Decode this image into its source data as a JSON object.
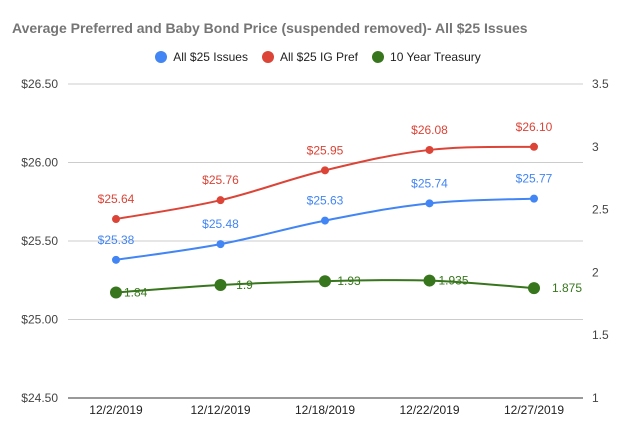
{
  "chart_data": {
    "type": "line",
    "title": "Average Preferred and Baby Bond Price (suspended removed)- All $25 Issues",
    "categories": [
      "12/2/2019",
      "12/12/2019",
      "12/18/2019",
      "12/22/2019",
      "12/27/2019"
    ],
    "left_axis": {
      "ticks": [
        "$26.50",
        "$26.00",
        "$25.50",
        "$25.00",
        "$24.50"
      ],
      "range": [
        24.5,
        26.5
      ]
    },
    "right_axis": {
      "ticks": [
        "3.5",
        "3",
        "2.5",
        "2",
        "1.5",
        "1"
      ],
      "range": [
        1,
        3.5
      ]
    },
    "grid": true,
    "legend_position": "top",
    "series": [
      {
        "name": "All $25 Issues",
        "axis": "left",
        "color": "#4285F4",
        "values": [
          25.38,
          25.48,
          25.63,
          25.74,
          25.77
        ],
        "labels": [
          "$25.38",
          "$25.48",
          "$25.63",
          "$25.74",
          "$25.77"
        ]
      },
      {
        "name": "All $25 IG Pref",
        "axis": "left",
        "color": "#DB4437",
        "values": [
          25.64,
          25.76,
          25.95,
          26.08,
          26.1
        ],
        "labels": [
          "$25.64",
          "$25.76",
          "$25.95",
          "$26.08",
          "$26.10"
        ]
      },
      {
        "name": "10 Year Treasury",
        "axis": "right",
        "color": "#38761D",
        "values": [
          1.84,
          1.9,
          1.93,
          1.935,
          1.875
        ],
        "labels": [
          "1.84",
          "1.9",
          "1.93",
          "1.935",
          "1.875"
        ]
      }
    ]
  }
}
